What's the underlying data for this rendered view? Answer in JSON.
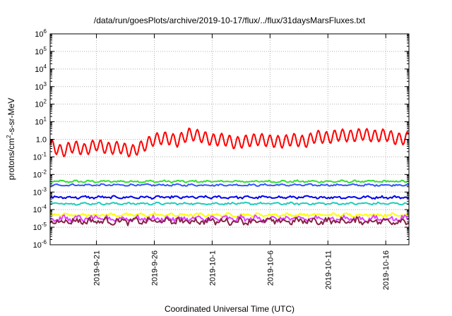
{
  "chart_data": {
    "type": "line",
    "title": "/data/run/goesPlots/archive/2019-10-17/flux/../flux/31daysMarsFluxes.txt",
    "xlabel": "Coordinated Universal Time (UTC)",
    "ylabel": {
      "base": "protons/cm",
      "sup": "2",
      "rest": "-s-sr-MeV"
    },
    "yscale": "log",
    "ylim": [
      1e-06,
      1000000.0
    ],
    "xlim": [
      "2019-09-17",
      "2019-10-18"
    ],
    "grid": true,
    "x_ticks": [
      "2019-9-21",
      "2019-9-26",
      "2019-10-1",
      "2019-10-6",
      "2019-10-11",
      "2019-10-16"
    ],
    "y_ticks": [
      {
        "base": "10",
        "exp": "-6"
      },
      {
        "base": "10",
        "exp": "-5"
      },
      {
        "base": "10",
        "exp": "-4"
      },
      {
        "base": "10",
        "exp": "-3"
      },
      {
        "base": "10",
        "exp": "-2"
      },
      {
        "base": "10",
        "exp": "-1"
      },
      {
        "base": "10",
        "exp": "0",
        "text": "1.0"
      },
      {
        "base": "10",
        "exp": "1"
      },
      {
        "base": "10",
        "exp": "2"
      },
      {
        "base": "10",
        "exp": "3"
      },
      {
        "base": "10",
        "exp": "4"
      },
      {
        "base": "10",
        "exp": "5"
      },
      {
        "base": "10",
        "exp": "6"
      }
    ],
    "series": [
      {
        "color": "#ff0000",
        "x": [
          "2019-09-17",
          "2019-09-18",
          "2019-09-19",
          "2019-09-20",
          "2019-09-21",
          "2019-09-22",
          "2019-09-23",
          "2019-09-24",
          "2019-09-25",
          "2019-09-26",
          "2019-09-27",
          "2019-09-28",
          "2019-09-29",
          "2019-09-30",
          "2019-10-01",
          "2019-10-02",
          "2019-10-03",
          "2019-10-04",
          "2019-10-05",
          "2019-10-06",
          "2019-10-07",
          "2019-10-08",
          "2019-10-09",
          "2019-10-10",
          "2019-10-11",
          "2019-10-12",
          "2019-10-13",
          "2019-10-14",
          "2019-10-15",
          "2019-10-16",
          "2019-10-17",
          "2019-10-18"
        ],
        "values": [
          0.5,
          0.2,
          0.4,
          0.25,
          0.5,
          0.3,
          0.35,
          0.2,
          0.4,
          1.0,
          1.2,
          0.8,
          2.0,
          1.5,
          0.9,
          1.0,
          0.6,
          0.8,
          1.0,
          0.8,
          0.7,
          1.0,
          0.7,
          1.5,
          1.2,
          1.8,
          1.5,
          2.0,
          1.5,
          1.8,
          1.0,
          1.2
        ],
        "amplitude": 0.35
      },
      {
        "color": "#33dd33",
        "base": 0.004,
        "amplitude": 0.08
      },
      {
        "color": "#3355ff",
        "base": 0.0025,
        "amplitude": 0.07
      },
      {
        "color": "#0000ee",
        "base": 0.0005,
        "amplitude": 0.1
      },
      {
        "color": "#22ccbb",
        "base": 0.00022,
        "amplitude": 0.08
      },
      {
        "color": "#ffff00",
        "base": 5e-05,
        "amplitude": 0.12
      },
      {
        "color": "#dd44ff",
        "base": 3e-05,
        "amplitude": 0.22
      },
      {
        "color": "#882244",
        "base": 2.2e-05,
        "amplitude": 0.25
      }
    ]
  }
}
